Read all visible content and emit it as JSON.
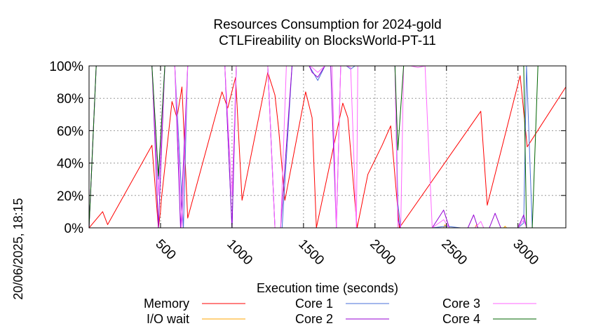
{
  "chart_data": {
    "type": "line",
    "title": "Resources Consumption for 2024-gold",
    "subtitle": "CTLFireability on BlocksWorld-PT-11",
    "xlabel": "Execution time (seconds)",
    "ylabel": "",
    "side_label": "20/06/2025, 18:15",
    "xlim": [
      0,
      3335
    ],
    "ylim": [
      0,
      100
    ],
    "x_ticks": [
      500,
      1000,
      1500,
      2000,
      2500,
      3000
    ],
    "y_ticks": [
      0,
      20,
      40,
      60,
      80,
      100
    ],
    "y_tick_labels": [
      "0%",
      "20%",
      "40%",
      "60%",
      "80%",
      "100%"
    ],
    "grid": true,
    "legend_position": "bottom",
    "series": [
      {
        "name": "Memory",
        "color": "#ff0000",
        "points": [
          [
            0,
            0
          ],
          [
            95,
            10
          ],
          [
            130,
            2
          ],
          [
            440,
            51
          ],
          [
            485,
            0
          ],
          [
            500,
            10
          ],
          [
            505,
            17
          ],
          [
            580,
            78
          ],
          [
            615,
            68
          ],
          [
            650,
            87
          ],
          [
            690,
            6
          ],
          [
            930,
            84
          ],
          [
            970,
            74
          ],
          [
            1025,
            93
          ],
          [
            1070,
            17
          ],
          [
            1250,
            96
          ],
          [
            1300,
            82
          ],
          [
            1325,
            62
          ],
          [
            1370,
            17
          ],
          [
            1515,
            84
          ],
          [
            1560,
            68
          ],
          [
            1590,
            0
          ],
          [
            1775,
            77
          ],
          [
            1810,
            68
          ],
          [
            1875,
            0
          ],
          [
            1950,
            33
          ],
          [
            2050,
            51
          ],
          [
            2110,
            63
          ],
          [
            2170,
            0
          ],
          [
            2740,
            72
          ],
          [
            2785,
            14
          ],
          [
            3015,
            94
          ],
          [
            3065,
            50
          ],
          [
            3335,
            87
          ]
        ]
      },
      {
        "name": "I/O wait",
        "color": "#ffa500",
        "points": [
          [
            0,
            0
          ],
          [
            130,
            0
          ],
          [
            500,
            0
          ],
          [
            1000,
            0
          ],
          [
            1500,
            0
          ],
          [
            2000,
            0
          ],
          [
            2200,
            0
          ],
          [
            2480,
            0
          ],
          [
            2490,
            2
          ],
          [
            2500,
            0
          ],
          [
            2700,
            0
          ],
          [
            2710,
            2
          ],
          [
            2720,
            0
          ],
          [
            2900,
            0
          ],
          [
            2910,
            1
          ],
          [
            2920,
            0
          ],
          [
            3335,
            0
          ]
        ]
      },
      {
        "name": "Core 1",
        "color": "#4a6fd8",
        "points": [
          [
            0,
            0
          ],
          [
            50,
            100
          ],
          [
            440,
            100
          ],
          [
            485,
            30
          ],
          [
            530,
            100
          ],
          [
            550,
            100
          ],
          [
            600,
            100
          ],
          [
            660,
            0
          ],
          [
            690,
            100
          ],
          [
            950,
            100
          ],
          [
            1000,
            0
          ],
          [
            1030,
            100
          ],
          [
            1060,
            100
          ],
          [
            1100,
            100
          ],
          [
            1250,
            100
          ],
          [
            1300,
            0
          ],
          [
            1350,
            0
          ],
          [
            1420,
            100
          ],
          [
            1540,
            100
          ],
          [
            1560,
            97
          ],
          [
            1600,
            91
          ],
          [
            1650,
            100
          ],
          [
            1800,
            100
          ],
          [
            1830,
            98
          ],
          [
            1860,
            100
          ],
          [
            2060,
            100
          ],
          [
            2140,
            100
          ],
          [
            2160,
            15
          ],
          [
            2180,
            0
          ],
          [
            2300,
            0
          ],
          [
            2400,
            0
          ],
          [
            2500,
            1
          ],
          [
            2600,
            0
          ],
          [
            3000,
            0
          ],
          [
            3040,
            3
          ],
          [
            3060,
            100
          ],
          [
            3100,
            0
          ],
          [
            3335,
            0
          ]
        ]
      },
      {
        "name": "Core 2",
        "color": "#9400d3",
        "points": [
          [
            0,
            0
          ],
          [
            50,
            100
          ],
          [
            440,
            100
          ],
          [
            485,
            0
          ],
          [
            530,
            100
          ],
          [
            600,
            100
          ],
          [
            640,
            0
          ],
          [
            690,
            100
          ],
          [
            950,
            100
          ],
          [
            1000,
            0
          ],
          [
            1030,
            100
          ],
          [
            1060,
            100
          ],
          [
            1250,
            100
          ],
          [
            1300,
            0
          ],
          [
            1340,
            0
          ],
          [
            1420,
            100
          ],
          [
            1540,
            100
          ],
          [
            1560,
            96
          ],
          [
            1600,
            93
          ],
          [
            1650,
            100
          ],
          [
            1690,
            100
          ],
          [
            1730,
            0
          ],
          [
            1760,
            100
          ],
          [
            2060,
            100
          ],
          [
            2140,
            100
          ],
          [
            2160,
            5
          ],
          [
            2180,
            0
          ],
          [
            2300,
            0
          ],
          [
            2400,
            0
          ],
          [
            2480,
            11
          ],
          [
            2520,
            0
          ],
          [
            2650,
            0
          ],
          [
            2690,
            8
          ],
          [
            2720,
            0
          ],
          [
            2800,
            0
          ],
          [
            2840,
            9
          ],
          [
            2880,
            0
          ],
          [
            3000,
            0
          ],
          [
            3040,
            8
          ],
          [
            3060,
            0
          ],
          [
            3335,
            0
          ]
        ]
      },
      {
        "name": "Core 3",
        "color": "#ff66ff",
        "points": [
          [
            0,
            0
          ],
          [
            50,
            100
          ],
          [
            440,
            100
          ],
          [
            485,
            20
          ],
          [
            530,
            100
          ],
          [
            600,
            100
          ],
          [
            650,
            0
          ],
          [
            690,
            100
          ],
          [
            950,
            100
          ],
          [
            1000,
            20
          ],
          [
            1030,
            100
          ],
          [
            1060,
            100
          ],
          [
            1250,
            100
          ],
          [
            1300,
            0
          ],
          [
            1340,
            0
          ],
          [
            1380,
            100
          ],
          [
            1540,
            100
          ],
          [
            1560,
            99
          ],
          [
            1600,
            96
          ],
          [
            1650,
            100
          ],
          [
            1700,
            100
          ],
          [
            1730,
            0
          ],
          [
            1760,
            100
          ],
          [
            1800,
            100
          ],
          [
            1830,
            99
          ],
          [
            1870,
            0
          ],
          [
            1880,
            100
          ],
          [
            2060,
            100
          ],
          [
            2140,
            100
          ],
          [
            2160,
            0
          ],
          [
            2180,
            0
          ],
          [
            2200,
            100
          ],
          [
            2250,
            100
          ],
          [
            2300,
            99
          ],
          [
            2350,
            100
          ],
          [
            2400,
            0
          ],
          [
            2480,
            5
          ],
          [
            2520,
            0
          ],
          [
            2700,
            0
          ],
          [
            2740,
            4
          ],
          [
            2760,
            0
          ],
          [
            3000,
            0
          ],
          [
            3040,
            5
          ],
          [
            3060,
            0
          ],
          [
            3335,
            0
          ]
        ]
      },
      {
        "name": "Core 4",
        "color": "#006400",
        "points": [
          [
            0,
            0
          ],
          [
            50,
            100
          ],
          [
            440,
            100
          ],
          [
            485,
            32
          ],
          [
            530,
            100
          ],
          [
            550,
            100
          ],
          [
            2140,
            100
          ],
          [
            2160,
            48
          ],
          [
            2200,
            100
          ],
          [
            3000,
            100
          ],
          [
            3040,
            100
          ],
          [
            3060,
            0
          ],
          [
            3100,
            0
          ],
          [
            3140,
            100
          ],
          [
            3335,
            100
          ]
        ]
      }
    ]
  }
}
